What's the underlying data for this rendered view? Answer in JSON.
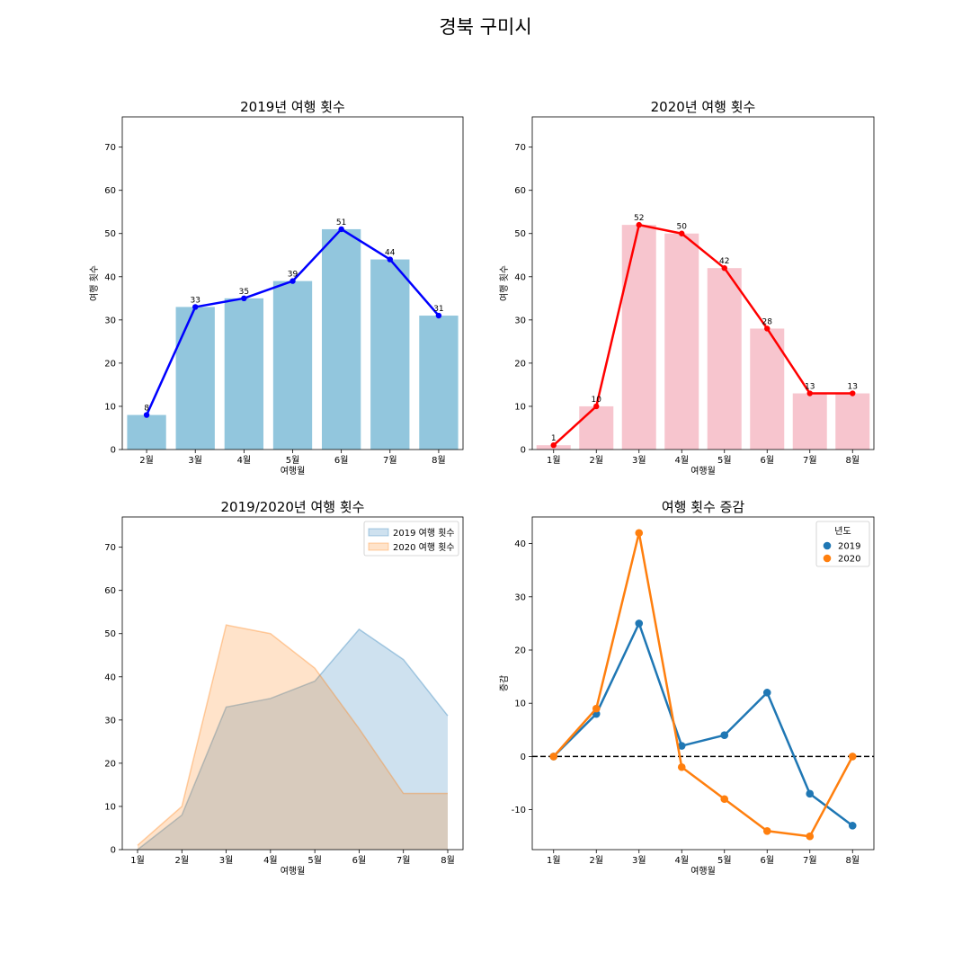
{
  "suptitle": "경북 구미시",
  "colors": {
    "bar2019": "#92c6dd",
    "line2019": "#0000ff",
    "bar2020": "#f7c5ce",
    "line2020": "#ff0000",
    "area2019": "#1f77b4",
    "area2020": "#ff7f0e",
    "pt2019": "#1f77b4",
    "pt2020": "#ff7f0e"
  },
  "chart_data": [
    {
      "type": "bar",
      "title": "2019년 여행 횟수",
      "xlabel": "여행월",
      "ylabel": "여행 횟수",
      "categories": [
        "2월",
        "3월",
        "4월",
        "5월",
        "6월",
        "7월",
        "8월"
      ],
      "values": [
        8,
        33,
        35,
        39,
        51,
        44,
        31
      ],
      "line_overlay": true,
      "ylim": [
        0,
        77
      ],
      "yticks": [
        0,
        10,
        20,
        30,
        40,
        50,
        60,
        70
      ]
    },
    {
      "type": "bar",
      "title": "2020년 여행 횟수",
      "xlabel": "여행월",
      "ylabel": "여행 횟수",
      "categories": [
        "1월",
        "2월",
        "3월",
        "4월",
        "5월",
        "6월",
        "7월",
        "8월"
      ],
      "values": [
        1,
        10,
        52,
        50,
        42,
        28,
        13,
        13
      ],
      "line_overlay": true,
      "ylim": [
        0,
        77
      ],
      "yticks": [
        0,
        10,
        20,
        30,
        40,
        50,
        60,
        70
      ]
    },
    {
      "type": "area",
      "title": "2019/2020년 여행 횟수",
      "xlabel": "여행월",
      "ylabel": "",
      "categories": [
        "1월",
        "2월",
        "3월",
        "4월",
        "5월",
        "6월",
        "7월",
        "8월"
      ],
      "series": [
        {
          "name": "2019 여행 횟수",
          "values": [
            0,
            8,
            33,
            35,
            39,
            51,
            44,
            31
          ]
        },
        {
          "name": "2020 여행 횟수",
          "values": [
            1,
            10,
            52,
            50,
            42,
            28,
            13,
            13
          ]
        }
      ],
      "legend": "top-right",
      "ylim": [
        0,
        77
      ],
      "yticks": [
        0,
        10,
        20,
        30,
        40,
        50,
        60,
        70
      ]
    },
    {
      "type": "line",
      "title": "여행 횟수 증감",
      "xlabel": "여행월",
      "ylabel": "증감",
      "categories": [
        "1월",
        "2월",
        "3월",
        "4월",
        "5월",
        "6월",
        "7월",
        "8월"
      ],
      "series": [
        {
          "name": "2019",
          "values": [
            0,
            8,
            25,
            2,
            4,
            12,
            -7,
            -13
          ]
        },
        {
          "name": "2020",
          "values": [
            0,
            9,
            42,
            -2,
            -8,
            -14,
            -15,
            0
          ]
        }
      ],
      "legend_title": "년도",
      "legend": "top-right",
      "reference_line": 0,
      "ylim": [
        -17.5,
        45
      ],
      "yticks": [
        -10,
        0,
        10,
        20,
        30,
        40
      ]
    }
  ]
}
